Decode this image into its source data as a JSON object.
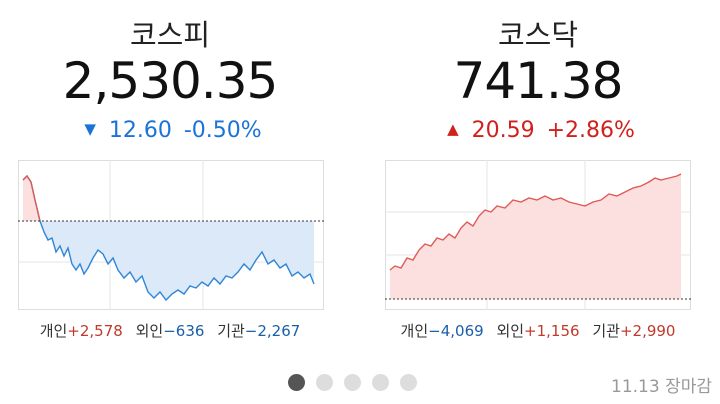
{
  "markets": [
    {
      "name": "코스피",
      "price": "2,530.35",
      "change": "12.60",
      "change_pct": "-0.50%",
      "investors": [
        {
          "label": "개인",
          "value": "+2,578"
        },
        {
          "label": "외인",
          "value": "−636"
        },
        {
          "label": "기관",
          "value": "−2,267"
        }
      ]
    },
    {
      "name": "코스닥",
      "price": "741.38",
      "change": "20.59",
      "change_pct": "+2.86%",
      "investors": [
        {
          "label": "개인",
          "value": "−4,069"
        },
        {
          "label": "외인",
          "value": "+1,156"
        },
        {
          "label": "기관",
          "value": "+2,990"
        }
      ]
    }
  ],
  "footer": {
    "date": "11.13",
    "status": "장마감"
  }
}
